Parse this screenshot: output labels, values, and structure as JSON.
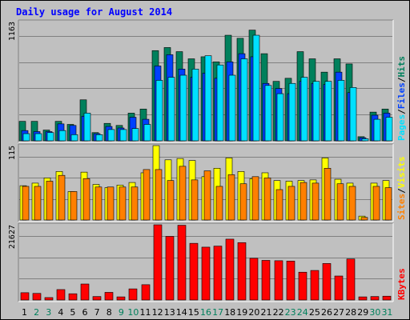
{
  "colors": {
    "page_bg": "#C0C0C0",
    "plot_bg": "#C0C0C0",
    "title_text": "#0000FF",
    "axis_text": "#000000",
    "hits": "#00805C",
    "files": "#0040FF",
    "pages": "#00E0FF",
    "visits": "#FFFF00",
    "sites": "#FF8000",
    "kbytes": "#FF0000",
    "weekend_day": "#00805C",
    "weekday_day": "#000000"
  },
  "chart_data": {
    "type": "bar",
    "title": "Daily usage for August 2014",
    "categories": [
      "1",
      "2",
      "3",
      "4",
      "5",
      "6",
      "7",
      "8",
      "9",
      "10",
      "11",
      "12",
      "13",
      "14",
      "15",
      "16",
      "17",
      "18",
      "19",
      "20",
      "21",
      "22",
      "23",
      "24",
      "25",
      "26",
      "27",
      "28",
      "29",
      "30",
      "31"
    ],
    "weekend_days": [
      "2",
      "3",
      "9",
      "10",
      "16",
      "17",
      "23",
      "24",
      "30",
      "31"
    ],
    "panels": [
      {
        "id": "hits_files_pages",
        "ymax_label": "1163",
        "ymax": 1163,
        "legend": [
          {
            "text": "Pages",
            "color_key": "pages"
          },
          {
            "text": "/",
            "color_key": "axis_text"
          },
          {
            "text": "Files",
            "color_key": "files"
          },
          {
            "text": "/",
            "color_key": "axis_text"
          },
          {
            "text": "Hits",
            "color_key": "hits"
          }
        ],
        "series": [
          {
            "name": "Hits",
            "color_key": "hits",
            "values": [
              190,
              190,
              105,
              190,
              160,
              400,
              80,
              170,
              150,
              270,
              310,
              880,
              910,
              870,
              800,
              820,
              770,
              1030,
              1000,
              1080,
              850,
              580,
              610,
              870,
              800,
              670,
              800,
              750,
              40,
              280,
              310
            ]
          },
          {
            "name": "Files",
            "color_key": "files",
            "values": [
              100,
              90,
              90,
              165,
              150,
              240,
              70,
              140,
              125,
              230,
              210,
              730,
              840,
              700,
              620,
              660,
              610,
              770,
              850,
              820,
              560,
              510,
              460,
              580,
              560,
              550,
              670,
              470,
              30,
              250,
              270
            ]
          },
          {
            "name": "Pages",
            "color_key": "pages",
            "values": [
              70,
              70,
              80,
              100,
              60,
              270,
              60,
              110,
              110,
              120,
              160,
              590,
              620,
              640,
              700,
              830,
              740,
              640,
              800,
              1030,
              540,
              460,
              560,
              620,
              580,
              580,
              590,
              520,
              20,
              210,
              230
            ]
          }
        ]
      },
      {
        "id": "visits_sites",
        "ymax_label": "115",
        "ymax": 115,
        "legend": [
          {
            "text": "Sites",
            "color_key": "sites"
          },
          {
            "text": "/",
            "color_key": "axis_text"
          },
          {
            "text": "Visits",
            "color_key": "visits"
          }
        ],
        "series": [
          {
            "name": "Visits",
            "color_key": "visits",
            "values": [
              53,
              57,
              65,
              75,
              44,
              74,
              55,
              50,
              54,
              58,
              73,
              115,
              93,
              95,
              92,
              67,
              80,
              96,
              75,
              64,
              73,
              61,
              60,
              61,
              62,
              96,
              63,
              57,
              6,
              57,
              61
            ]
          },
          {
            "name": "Sites",
            "color_key": "sites",
            "values": [
              52,
              52,
              60,
              69,
              44,
              64,
              51,
              51,
              51,
              51,
              78,
              78,
              61,
              83,
              62,
              76,
              52,
              70,
              56,
              67,
              65,
              47,
              52,
              58,
              57,
              80,
              56,
              52,
              4,
              52,
              50
            ]
          }
        ]
      },
      {
        "id": "kbytes",
        "ymax_label": "21627",
        "ymax": 21627,
        "legend": [
          {
            "text": "KBytes",
            "color_key": "kbytes"
          }
        ],
        "series": [
          {
            "name": "KBytes",
            "color_key": "kbytes",
            "values": [
              2100,
              1900,
              700,
              3000,
              1800,
              4600,
              1000,
              2200,
              900,
              3200,
              4400,
              21627,
              18300,
              21500,
              16300,
              15200,
              15500,
              17500,
              16500,
              12000,
              11400,
              11300,
              11200,
              8000,
              8500,
              10500,
              6900,
              11800,
              900,
              1000,
              1100
            ]
          }
        ]
      }
    ]
  }
}
